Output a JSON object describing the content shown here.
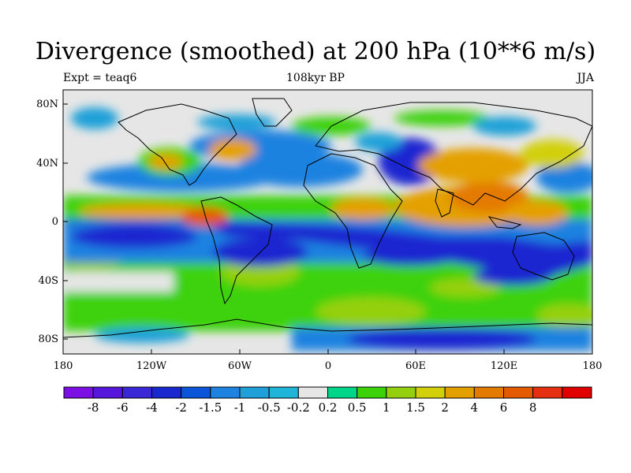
{
  "title": "Divergence (smoothed) at 200 hPa (10**6 m/s)",
  "left_string": "Expt = teaq6",
  "center_string": "108kyr BP",
  "right_string": "JJA",
  "map": {
    "lon_ticks": [
      "180",
      "120W",
      "60W",
      "0",
      "60E",
      "120E",
      "180"
    ],
    "lat_ticks": [
      "80N",
      "40N",
      "0",
      "40S",
      "80S"
    ],
    "ocean_fill": "#e6e6e6",
    "coast_color": "#000000"
  },
  "colorbar": {
    "colors": [
      "#7c10e4",
      "#5616dc",
      "#3a28d6",
      "#1a28d0",
      "#0a55d8",
      "#1e82e0",
      "#1fa0d8",
      "#20b4d8",
      "#e6e6e6",
      "#00d68a",
      "#3cd20a",
      "#95d010",
      "#d2d00a",
      "#e4a000",
      "#e47a00",
      "#e45a00",
      "#e43010",
      "#e00000"
    ],
    "labels": [
      "-8",
      "-6",
      "-4",
      "-2",
      "-1.5",
      "-1",
      "-0.5",
      "-0.2",
      "0.2",
      "0.5",
      "1",
      "1.5",
      "2",
      "4",
      "6",
      "8"
    ]
  }
}
